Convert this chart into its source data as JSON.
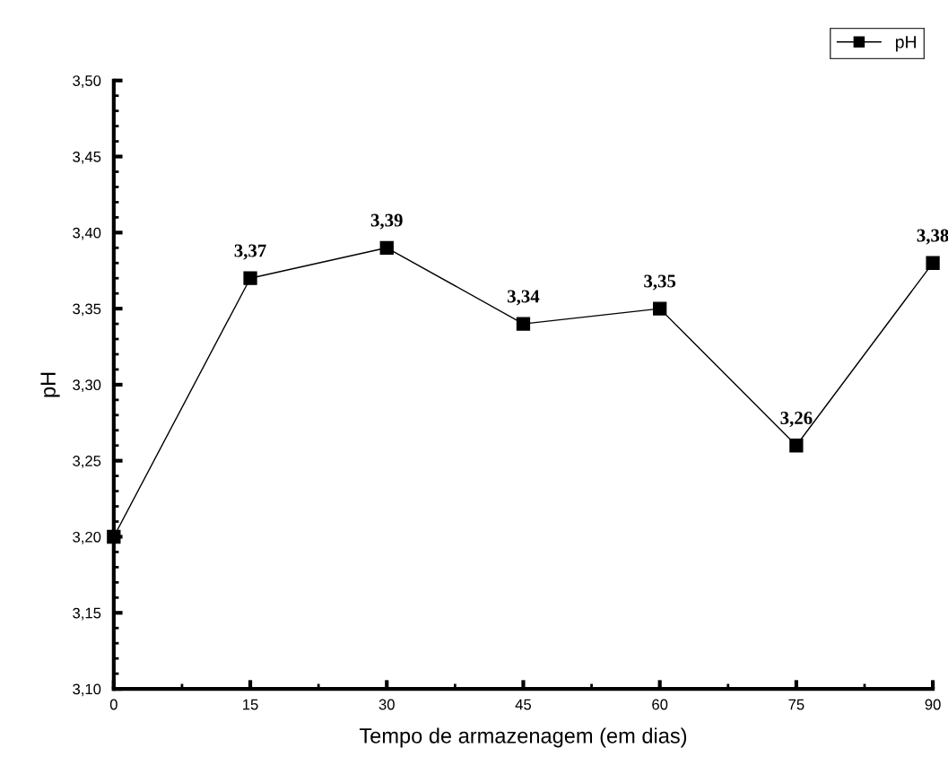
{
  "chart_data": {
    "type": "line",
    "xlabel": "Tempo de armazenagem (em dias)",
    "ylabel": "pH",
    "x": [
      0,
      15,
      30,
      45,
      60,
      75,
      90
    ],
    "series": [
      {
        "name": "pH",
        "color": "#000000",
        "values": [
          3.2,
          3.37,
          3.39,
          3.34,
          3.35,
          3.26,
          3.38
        ],
        "value_labels": [
          null,
          "3,37",
          "3,39",
          "3,34",
          "3,35",
          "3,26",
          "3,38"
        ]
      }
    ],
    "xlim": [
      0,
      90
    ],
    "xticks": [
      0,
      15,
      30,
      45,
      60,
      75,
      90
    ],
    "ylim": [
      3.1,
      3.5
    ],
    "yticks": [
      {
        "value": 3.1,
        "label": "3,10"
      },
      {
        "value": 3.15,
        "label": "3,15"
      },
      {
        "value": 3.2,
        "label": "3,20"
      },
      {
        "value": 3.25,
        "label": "3,25"
      },
      {
        "value": 3.3,
        "label": "3,30"
      },
      {
        "value": 3.35,
        "label": "3,35"
      },
      {
        "value": 3.4,
        "label": "3,40"
      },
      {
        "value": 3.45,
        "label": "3,45"
      },
      {
        "value": 3.5,
        "label": "3,50"
      }
    ],
    "marker": "square",
    "line_style": "solid",
    "legend": "top right",
    "grid": false
  }
}
